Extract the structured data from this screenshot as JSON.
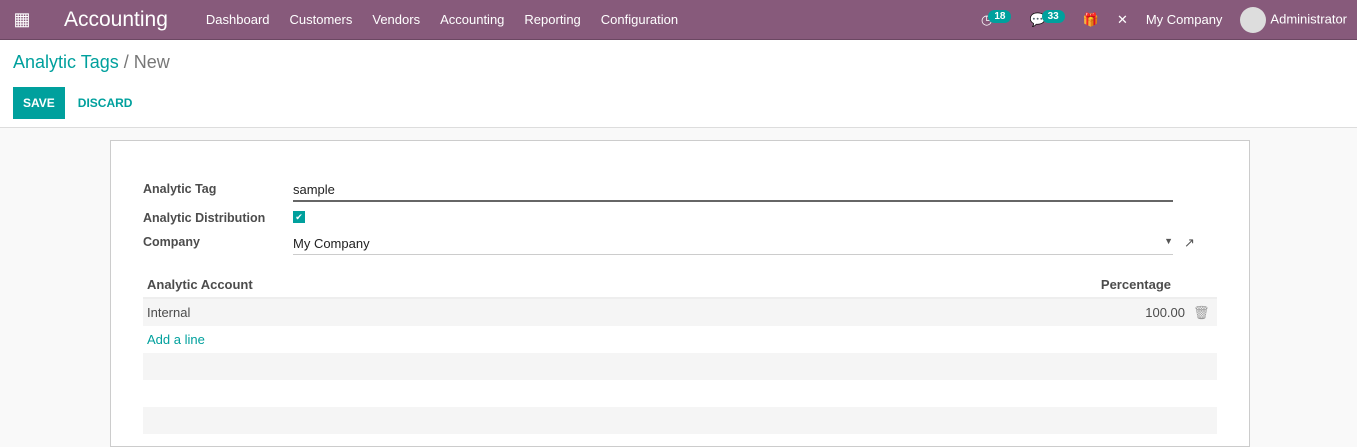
{
  "nav": {
    "app": "Accounting",
    "menu": [
      "Dashboard",
      "Customers",
      "Vendors",
      "Accounting",
      "Reporting",
      "Configuration"
    ],
    "activity_count": "18",
    "message_count": "33",
    "company": "My Company",
    "user": "Administrator"
  },
  "breadcrumb": {
    "parent": "Analytic Tags",
    "sep": "/",
    "current": "New"
  },
  "buttons": {
    "save": "SAVE",
    "discard": "DISCARD"
  },
  "form": {
    "tag_label": "Analytic Tag",
    "tag_value": "sample",
    "dist_label": "Analytic Distribution",
    "dist_checked": true,
    "company_label": "Company",
    "company_value": "My Company"
  },
  "table": {
    "col_account": "Analytic Account",
    "col_pct": "Percentage",
    "rows": [
      {
        "account": "Internal",
        "pct": "100.00"
      }
    ],
    "add_line": "Add a line"
  }
}
